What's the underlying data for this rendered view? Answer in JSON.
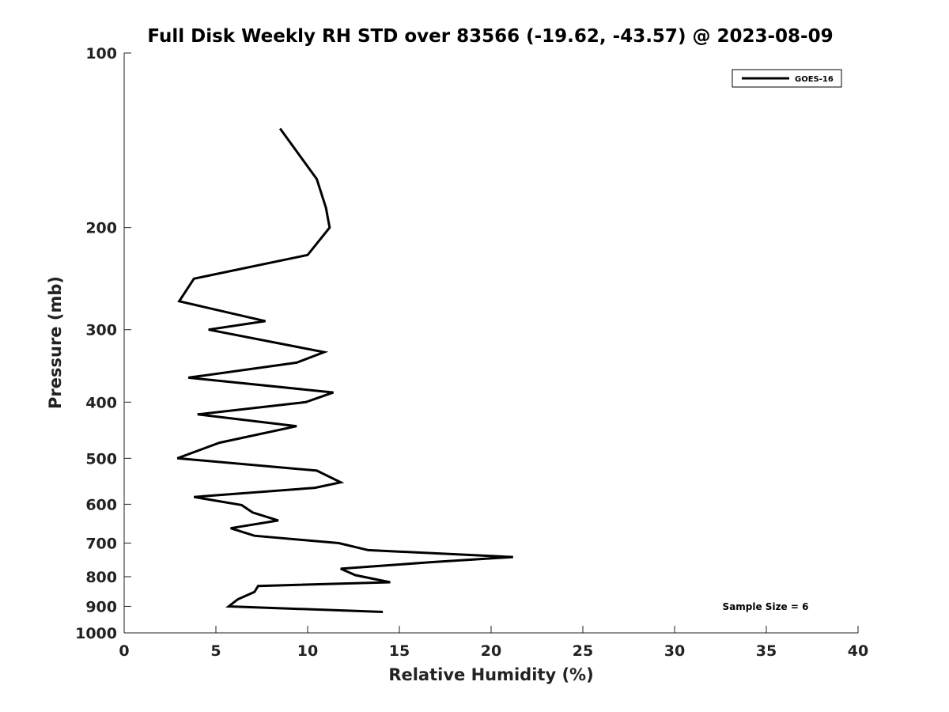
{
  "chart_data": {
    "type": "line",
    "title": "Full Disk Weekly RH STD over 83566 (-19.62, -43.57) @ 2023-08-09",
    "xlabel": "Relative Humidity (%)",
    "ylabel": "Pressure (mb)",
    "xlim": [
      0,
      40
    ],
    "ylim": [
      100,
      1000
    ],
    "yscale": "log",
    "reverse_y": true,
    "xticks": [
      0,
      5,
      10,
      15,
      20,
      25,
      30,
      35,
      40
    ],
    "yticks": [
      100,
      200,
      300,
      400,
      500,
      600,
      700,
      800,
      900,
      1000
    ],
    "legend": {
      "position": "top-right",
      "entries": [
        "GOES-16"
      ]
    },
    "annotation": "Sample Size = 6",
    "series": [
      {
        "name": "GOES-16",
        "color": "#000000",
        "points": [
          {
            "rh": 8.5,
            "p": 135
          },
          {
            "rh": 10.5,
            "p": 165
          },
          {
            "rh": 11.0,
            "p": 185
          },
          {
            "rh": 11.2,
            "p": 200
          },
          {
            "rh": 10.0,
            "p": 223
          },
          {
            "rh": 3.8,
            "p": 245
          },
          {
            "rh": 3.0,
            "p": 268
          },
          {
            "rh": 7.7,
            "p": 290
          },
          {
            "rh": 4.6,
            "p": 300
          },
          {
            "rh": 10.9,
            "p": 328
          },
          {
            "rh": 9.4,
            "p": 342
          },
          {
            "rh": 3.5,
            "p": 363
          },
          {
            "rh": 11.4,
            "p": 385
          },
          {
            "rh": 9.9,
            "p": 400
          },
          {
            "rh": 4.0,
            "p": 420
          },
          {
            "rh": 9.4,
            "p": 440
          },
          {
            "rh": 5.2,
            "p": 470
          },
          {
            "rh": 2.9,
            "p": 500
          },
          {
            "rh": 10.5,
            "p": 525
          },
          {
            "rh": 11.8,
            "p": 550
          },
          {
            "rh": 10.4,
            "p": 562
          },
          {
            "rh": 3.8,
            "p": 583
          },
          {
            "rh": 6.4,
            "p": 602
          },
          {
            "rh": 7.0,
            "p": 620
          },
          {
            "rh": 8.4,
            "p": 640
          },
          {
            "rh": 5.8,
            "p": 660
          },
          {
            "rh": 7.1,
            "p": 680
          },
          {
            "rh": 11.7,
            "p": 700
          },
          {
            "rh": 13.3,
            "p": 720
          },
          {
            "rh": 21.2,
            "p": 740
          },
          {
            "rh": 16.8,
            "p": 755
          },
          {
            "rh": 11.8,
            "p": 775
          },
          {
            "rh": 12.6,
            "p": 795
          },
          {
            "rh": 14.5,
            "p": 818
          },
          {
            "rh": 7.3,
            "p": 830
          },
          {
            "rh": 7.1,
            "p": 850
          },
          {
            "rh": 6.2,
            "p": 875
          },
          {
            "rh": 5.7,
            "p": 900
          },
          {
            "rh": 14.1,
            "p": 920
          }
        ]
      }
    ]
  }
}
